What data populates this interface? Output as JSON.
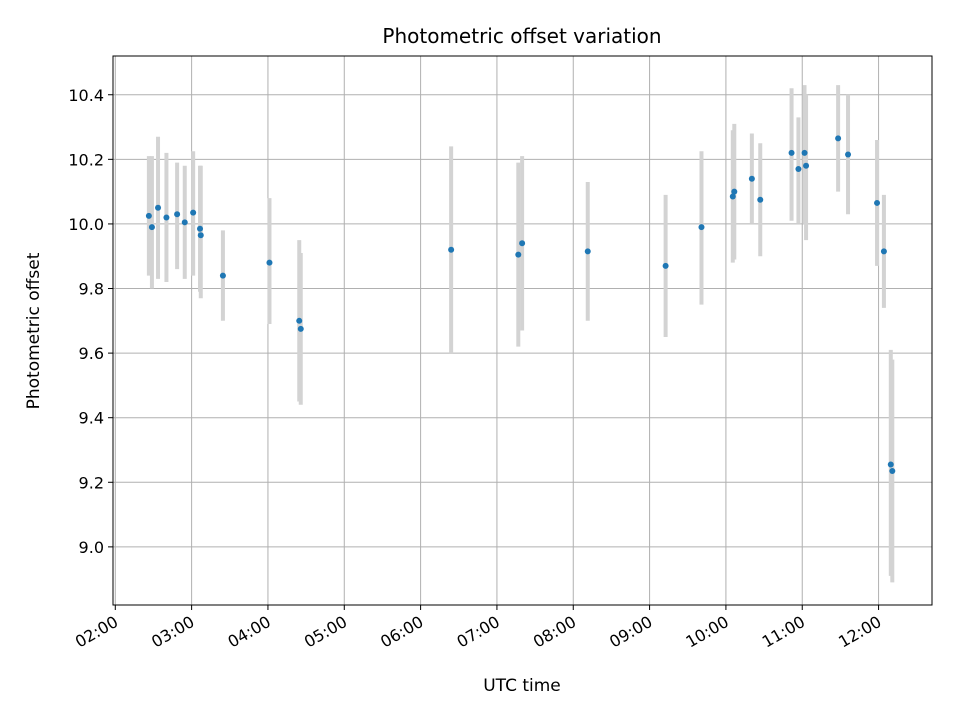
{
  "chart_data": {
    "type": "scatter",
    "title": "Photometric offset variation",
    "xlabel": "UTC time",
    "ylabel": "Photometric offset",
    "x_unit": "hours UTC",
    "xlim": [
      1.97,
      12.7
    ],
    "ylim": [
      8.82,
      10.52
    ],
    "x_ticks": [
      {
        "value": 2,
        "label": "02:00"
      },
      {
        "value": 3,
        "label": "03:00"
      },
      {
        "value": 4,
        "label": "04:00"
      },
      {
        "value": 5,
        "label": "05:00"
      },
      {
        "value": 6,
        "label": "06:00"
      },
      {
        "value": 7,
        "label": "07:00"
      },
      {
        "value": 8,
        "label": "08:00"
      },
      {
        "value": 9,
        "label": "09:00"
      },
      {
        "value": 10,
        "label": "10:00"
      },
      {
        "value": 11,
        "label": "11:00"
      },
      {
        "value": 12,
        "label": "12:00"
      }
    ],
    "y_ticks": [
      9.0,
      9.2,
      9.4,
      9.6,
      9.8,
      10.0,
      10.2,
      10.4
    ],
    "y_tick_labels": [
      "9.0",
      "9.2",
      "9.4",
      "9.6",
      "9.8",
      "10.0",
      "10.2",
      "10.4"
    ],
    "grid": true,
    "marker_color": "#1f77b4",
    "errorbar_color": "#d3d3d3",
    "points": [
      {
        "x": 2.44,
        "y": 10.025,
        "low": 9.84,
        "high": 10.21
      },
      {
        "x": 2.48,
        "y": 9.99,
        "low": 9.8,
        "high": 10.21
      },
      {
        "x": 2.56,
        "y": 10.05,
        "low": 9.83,
        "high": 10.27
      },
      {
        "x": 2.67,
        "y": 10.02,
        "low": 9.82,
        "high": 10.22
      },
      {
        "x": 2.81,
        "y": 10.03,
        "low": 9.86,
        "high": 10.19
      },
      {
        "x": 2.91,
        "y": 10.005,
        "low": 9.83,
        "high": 10.18
      },
      {
        "x": 3.02,
        "y": 10.035,
        "low": 9.84,
        "high": 10.225
      },
      {
        "x": 3.11,
        "y": 9.985,
        "low": 9.79,
        "high": 10.18
      },
      {
        "x": 3.12,
        "y": 9.965,
        "low": 9.77,
        "high": 10.18
      },
      {
        "x": 3.41,
        "y": 9.84,
        "low": 9.7,
        "high": 9.98
      },
      {
        "x": 4.02,
        "y": 9.88,
        "low": 9.69,
        "high": 10.08
      },
      {
        "x": 4.41,
        "y": 9.7,
        "low": 9.45,
        "high": 9.95
      },
      {
        "x": 4.43,
        "y": 9.675,
        "low": 9.44,
        "high": 9.91
      },
      {
        "x": 6.4,
        "y": 9.92,
        "low": 9.6,
        "high": 10.24
      },
      {
        "x": 7.28,
        "y": 9.905,
        "low": 9.62,
        "high": 10.19
      },
      {
        "x": 7.33,
        "y": 9.94,
        "low": 9.67,
        "high": 10.21
      },
      {
        "x": 8.19,
        "y": 9.915,
        "low": 9.7,
        "high": 10.13
      },
      {
        "x": 9.21,
        "y": 9.87,
        "low": 9.65,
        "high": 10.09
      },
      {
        "x": 9.68,
        "y": 9.99,
        "low": 9.75,
        "high": 10.225
      },
      {
        "x": 10.09,
        "y": 10.085,
        "low": 9.88,
        "high": 10.29
      },
      {
        "x": 10.11,
        "y": 10.1,
        "low": 9.89,
        "high": 10.31
      },
      {
        "x": 10.34,
        "y": 10.14,
        "low": 10.0,
        "high": 10.28
      },
      {
        "x": 10.45,
        "y": 10.075,
        "low": 9.9,
        "high": 10.25
      },
      {
        "x": 10.86,
        "y": 10.22,
        "low": 10.01,
        "high": 10.42
      },
      {
        "x": 10.95,
        "y": 10.17,
        "low": 10.0,
        "high": 10.33
      },
      {
        "x": 11.03,
        "y": 10.22,
        "low": 10.0,
        "high": 10.43
      },
      {
        "x": 11.05,
        "y": 10.18,
        "low": 9.95,
        "high": 10.4
      },
      {
        "x": 11.47,
        "y": 10.265,
        "low": 10.1,
        "high": 10.43
      },
      {
        "x": 11.6,
        "y": 10.215,
        "low": 10.03,
        "high": 10.4
      },
      {
        "x": 11.98,
        "y": 10.065,
        "low": 9.87,
        "high": 10.26
      },
      {
        "x": 12.07,
        "y": 9.915,
        "low": 9.74,
        "high": 10.09
      },
      {
        "x": 12.16,
        "y": 9.255,
        "low": 8.91,
        "high": 9.61
      },
      {
        "x": 12.18,
        "y": 9.235,
        "low": 8.89,
        "high": 9.58
      }
    ]
  }
}
